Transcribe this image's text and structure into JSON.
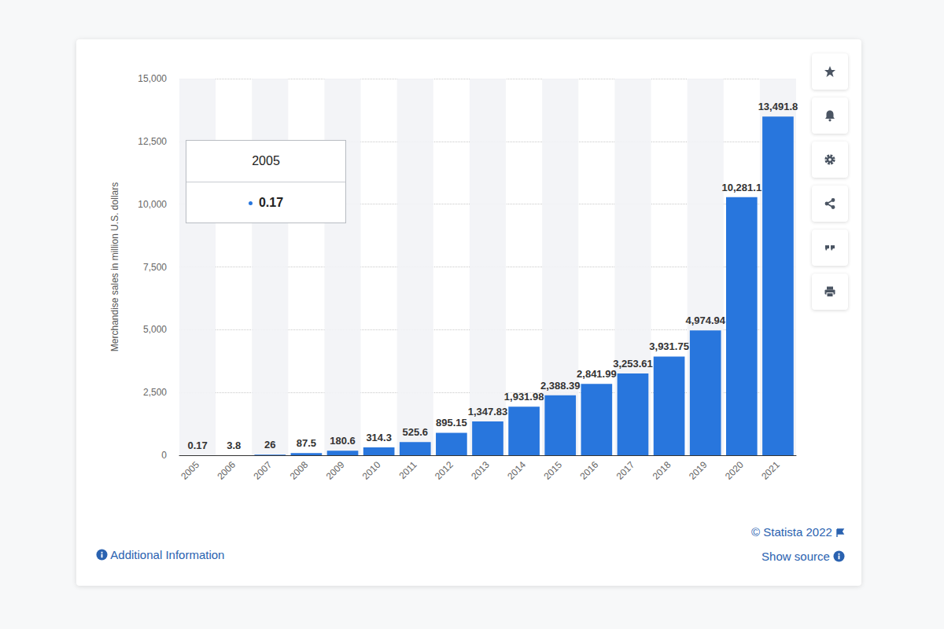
{
  "chart_data": {
    "type": "bar",
    "y_label": "Merchandise sales in million U.S. dollars",
    "categories": [
      "2005",
      "2006",
      "2007",
      "2008",
      "2009",
      "2010",
      "2011",
      "2012",
      "2013",
      "2014",
      "2015",
      "2016",
      "2017",
      "2018",
      "2019",
      "2020",
      "2021"
    ],
    "values": [
      0.17,
      3.8,
      26,
      87.5,
      180.6,
      314.3,
      525.6,
      895.15,
      1347.83,
      1931.98,
      2388.39,
      2841.99,
      3253.61,
      3931.75,
      4974.94,
      10281.1,
      13491.8
    ],
    "value_labels": [
      "0.17",
      "3.8",
      "26",
      "87.5",
      "180.6",
      "314.3",
      "525.6",
      "895.15",
      "1,347.83",
      "1,931.98",
      "2,388.39",
      "2,841.99",
      "3,253.61",
      "3,931.75",
      "4,974.94",
      "10,281.1",
      "13,491.8"
    ],
    "color": "#2876dd",
    "ylim": [
      0,
      15000
    ],
    "yticks": [
      0,
      {
        "value": 2500,
        "label": "2,500"
      },
      {
        "value": 5000,
        "label": "5,000"
      },
      {
        "value": 7500,
        "label": "7,500"
      },
      {
        "value": 10000,
        "label": "10,000"
      },
      {
        "value": 12500,
        "label": "12,500"
      },
      {
        "value": 15000,
        "label": "15,000"
      }
    ],
    "grid": true,
    "data_labels": true,
    "tooltip": {
      "category": "2005",
      "value": 0.17
    },
    "annotations": {
      "copyright": "© Statista 2022",
      "additional_information": "Additional Information",
      "show_source": "Show source"
    }
  }
}
